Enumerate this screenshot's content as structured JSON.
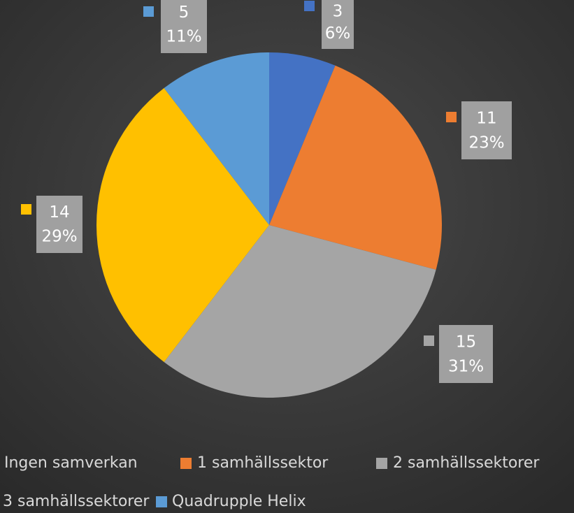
{
  "chart_data": {
    "type": "pie",
    "categories": [
      "Ingen samverkan",
      "1 samhällssektor",
      "2 samhällssektorer",
      "3 samhällssektorer",
      "Quadrupple Helix"
    ],
    "values": [
      3,
      11,
      15,
      14,
      5
    ],
    "percent_labels": [
      "6%",
      "23%",
      "31%",
      "29%",
      "11%"
    ],
    "colors": [
      "#4472c4",
      "#ed7d31",
      "#a5a5a5",
      "#ffc000",
      "#5b9bd5"
    ],
    "legend": "bottom"
  }
}
